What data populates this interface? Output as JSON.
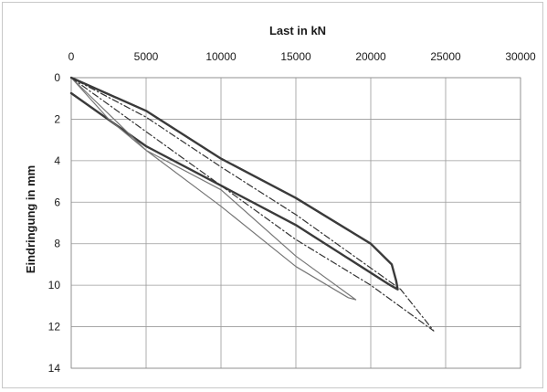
{
  "chart_data": {
    "type": "line",
    "title": "",
    "xlabel": "Last in kN",
    "ylabel": "Eindringung in mm",
    "xaxis_position": "top",
    "y_inverted": true,
    "xlim": [
      0,
      30000
    ],
    "ylim": [
      0,
      14
    ],
    "xticks": [
      0,
      5000,
      10000,
      15000,
      20000,
      25000,
      30000
    ],
    "yticks": [
      0,
      2,
      4,
      6,
      8,
      10,
      12,
      14
    ],
    "grid": true,
    "legend": "none",
    "series": [
      {
        "style": "solid-thick",
        "color": "#3a3a3a",
        "points": [
          [
            0,
            0
          ],
          [
            5000,
            1.6
          ],
          [
            10000,
            3.9
          ],
          [
            15000,
            5.8
          ],
          [
            20000,
            8.0
          ],
          [
            21400,
            9.0
          ],
          [
            21700,
            9.8
          ],
          [
            21800,
            10.2
          ],
          [
            21300,
            10.0
          ],
          [
            15000,
            7.1
          ],
          [
            10000,
            5.2
          ],
          [
            5000,
            3.3
          ],
          [
            0,
            0.75
          ]
        ]
      },
      {
        "style": "solid-thin",
        "color": "#777777",
        "points": [
          [
            0,
            0
          ],
          [
            5000,
            3.5
          ],
          [
            10000,
            5.4
          ],
          [
            15000,
            8.6
          ],
          [
            19000,
            10.7
          ],
          [
            18500,
            10.6
          ],
          [
            15000,
            9.1
          ],
          [
            10000,
            6.2
          ],
          [
            5000,
            3.5
          ],
          [
            2500,
            2.0
          ],
          [
            0,
            0
          ]
        ]
      },
      {
        "style": "dash-dot",
        "color": "#333333",
        "points": [
          [
            0,
            0
          ],
          [
            5000,
            2.6
          ],
          [
            10000,
            5.2
          ],
          [
            15000,
            7.8
          ],
          [
            20000,
            10.0
          ],
          [
            24200,
            12.2
          ],
          [
            22000,
            10.2
          ],
          [
            15000,
            6.6
          ],
          [
            10000,
            4.3
          ],
          [
            5000,
            1.9
          ],
          [
            0,
            0
          ]
        ]
      }
    ]
  }
}
